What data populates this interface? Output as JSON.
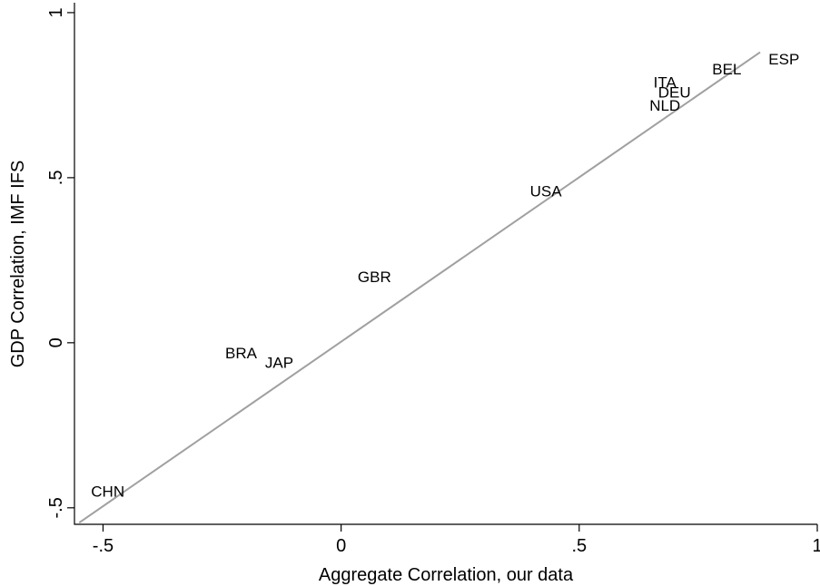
{
  "chart_data": {
    "type": "scatter",
    "title": "",
    "xlabel": "Aggregate Correlation, our data",
    "ylabel": "GDP Correlation, IMF IFS",
    "xlim": [
      -0.56,
      1.0
    ],
    "ylim": [
      -0.55,
      1.03
    ],
    "x_ticks": [
      {
        "value": -0.5,
        "label": "-.5"
      },
      {
        "value": 0,
        "label": "0"
      },
      {
        "value": 0.5,
        "label": ".5"
      },
      {
        "value": 1,
        "label": "1"
      }
    ],
    "y_ticks": [
      {
        "value": -0.5,
        "label": "-.5"
      },
      {
        "value": 0,
        "label": "0"
      },
      {
        "value": 0.5,
        "label": ".5"
      },
      {
        "value": 1,
        "label": "1"
      }
    ],
    "grid": false,
    "points": [
      {
        "label": "CHN",
        "x": -0.49,
        "y": -0.45
      },
      {
        "label": "BRA",
        "x": -0.21,
        "y": -0.03
      },
      {
        "label": "JAP",
        "x": -0.13,
        "y": -0.06
      },
      {
        "label": "GBR",
        "x": 0.07,
        "y": 0.2
      },
      {
        "label": "USA",
        "x": 0.43,
        "y": 0.46
      },
      {
        "label": "ITA",
        "x": 0.68,
        "y": 0.79
      },
      {
        "label": "DEU",
        "x": 0.7,
        "y": 0.76
      },
      {
        "label": "NLD",
        "x": 0.68,
        "y": 0.72
      },
      {
        "label": "BEL",
        "x": 0.81,
        "y": 0.83
      },
      {
        "label": "ESP",
        "x": 0.93,
        "y": 0.86
      }
    ],
    "fit_line": {
      "x": [
        -0.55,
        0.88
      ],
      "y": [
        -0.545,
        0.88
      ],
      "color": "#a0a0a0"
    }
  }
}
